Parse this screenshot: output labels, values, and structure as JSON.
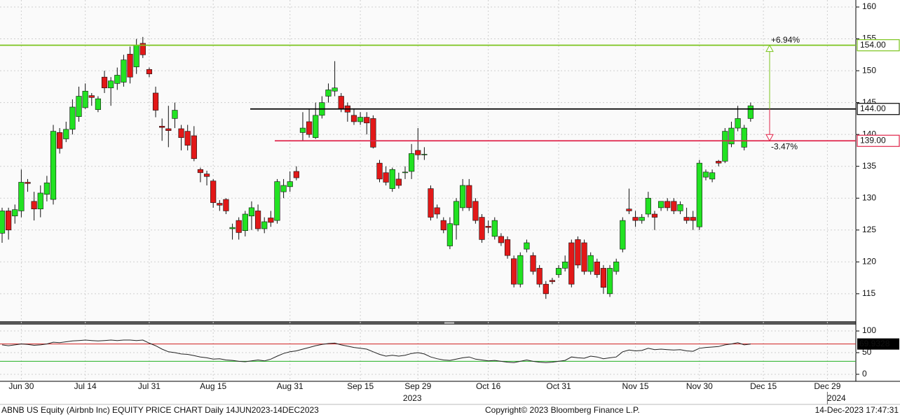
{
  "chart_data": [
    {
      "type": "candlestick",
      "categories": [
        null,
        null,
        null,
        "Jun 30",
        null,
        null,
        null,
        null,
        null,
        null,
        null,
        null,
        null,
        "Jul 14",
        null,
        null,
        null,
        null,
        null,
        null,
        null,
        null,
        null,
        "Jul 31",
        null,
        null,
        null,
        null,
        null,
        null,
        null,
        null,
        null,
        "Aug 15",
        null,
        null,
        null,
        null,
        null,
        null,
        null,
        null,
        null,
        null,
        null,
        "Aug 31",
        null,
        null,
        null,
        null,
        null,
        null,
        null,
        null,
        null,
        null,
        "Sep 15",
        null,
        null,
        null,
        null,
        null,
        null,
        null,
        null,
        "Sep 29",
        null,
        null,
        null,
        null,
        null,
        null,
        null,
        null,
        null,
        null,
        "Oct 16",
        null,
        null,
        null,
        null,
        null,
        null,
        null,
        null,
        null,
        null,
        "Oct 31",
        null,
        null,
        null,
        null,
        null,
        null,
        null,
        null,
        null,
        null,
        null,
        "Nov 15",
        null,
        null,
        null,
        null,
        null,
        null,
        null,
        null,
        null,
        "Nov 30",
        null,
        null,
        null,
        null,
        null,
        null,
        null,
        null,
        null,
        "Dec 15",
        null,
        null,
        null,
        null,
        null,
        null,
        null,
        null,
        null,
        "Dec 29",
        null,
        null,
        null,
        null
      ],
      "years": [
        "2023",
        "2024"
      ],
      "open": [
        124.5,
        128,
        127.2,
        128,
        132.5,
        129.5,
        128.3,
        130.6,
        129.8,
        140.3,
        139.3,
        140.8,
        142.8,
        144.2,
        146.1,
        143.9,
        149,
        147.3,
        148,
        148.2,
        152.6,
        150.6,
        154.3,
        150.2,
        146.5,
        141.3,
        140.9,
        142.5,
        140.9,
        140.5,
        139.8,
        134.5,
        133.8,
        132.7,
        129.2,
        129.8,
        125.2,
        126.5,
        124.9,
        127.2,
        128,
        125.2,
        126.9,
        126.5,
        131,
        131.8,
        134.2,
        140.3,
        142,
        139.5,
        143,
        146,
        146.8,
        146,
        144.5,
        143,
        142,
        142.7,
        142.5,
        135.5,
        134,
        131.5,
        133,
        134,
        134.2,
        137.5,
        136.8,
        131.5,
        128.5,
        126.5,
        122.5,
        125.8,
        128.5,
        132,
        129.5,
        127,
        125.6,
        124,
        124,
        123.5,
        120.5,
        116.5,
        122,
        121,
        119,
        116.5,
        117.1,
        118,
        119,
        123,
        123.5,
        123,
        118.5,
        120,
        119,
        115,
        118.5,
        122,
        128.3,
        127,
        126.5,
        127.5,
        127.5,
        128.5,
        129.5,
        129.5,
        128,
        127,
        127,
        125.5,
        133.3,
        133,
        135.8,
        135.8,
        138.5,
        141,
        138,
        142.5,
        null,
        null,
        null,
        null,
        null,
        null,
        null,
        null,
        null,
        null,
        null,
        null,
        null,
        null,
        null,
        null
      ],
      "high": [
        128.5,
        128.5,
        129,
        134.5,
        133,
        131,
        132,
        133.5,
        141.5,
        141,
        142,
        145.5,
        147.5,
        148,
        146.5,
        146,
        150,
        149,
        150.5,
        152.5,
        153.8,
        155,
        155.3,
        150.5,
        147.5,
        142.5,
        144.5,
        145,
        141.5,
        141.5,
        141.3,
        134.8,
        134.3,
        133,
        129.7,
        130,
        126,
        127,
        128,
        129.5,
        129,
        127,
        128,
        133,
        133,
        134.2,
        135,
        143.5,
        144,
        145,
        146,
        148,
        151.5,
        146.5,
        145,
        144,
        143.5,
        143.5,
        143,
        136,
        135,
        134.8,
        134,
        135,
        138.5,
        141,
        138,
        132,
        129,
        127,
        127,
        130,
        133,
        133,
        130,
        127.5,
        126.5,
        127,
        124.5,
        124,
        121,
        121.5,
        123.5,
        121.5,
        119.5,
        117,
        117.5,
        119.5,
        121,
        123.5,
        124,
        123.5,
        121.5,
        120.5,
        119.5,
        119.5,
        120.5,
        127,
        131.5,
        128,
        127.5,
        131,
        128,
        129.5,
        130,
        130,
        129.5,
        128.5,
        128,
        136,
        134.5,
        134.5,
        136,
        141,
        142,
        144.5,
        141.5,
        145,
        null,
        null,
        null,
        null,
        null,
        null,
        null,
        null,
        null,
        null,
        null,
        null,
        null,
        null,
        null,
        null
      ],
      "low": [
        123,
        123.5,
        126,
        127,
        131,
        126.5,
        127,
        129.5,
        129,
        137,
        138.8,
        140,
        142,
        144,
        144.5,
        143.5,
        146.5,
        144.5,
        147,
        147.5,
        148,
        149.5,
        152,
        149,
        142.7,
        139,
        138,
        141,
        137.5,
        137.5,
        135.8,
        132.5,
        132,
        128.5,
        128,
        127.5,
        123.5,
        123.5,
        124,
        125,
        124.8,
        124.5,
        125.5,
        126,
        130,
        131,
        132.8,
        139,
        139.5,
        139.3,
        142.5,
        145,
        146,
        143.5,
        142,
        141.5,
        141.5,
        140,
        137.8,
        132.5,
        132,
        131,
        131.5,
        133,
        133,
        136,
        136,
        126.5,
        126.8,
        124.5,
        122,
        123.5,
        128,
        128,
        126,
        123,
        124.5,
        123.5,
        122.5,
        120.5,
        116,
        116,
        121.5,
        118,
        116,
        114.2,
        116.5,
        117.5,
        118.5,
        116,
        119,
        118,
        118,
        117.5,
        115,
        114.5,
        118,
        121.5,
        127.5,
        125.5,
        126,
        127,
        125,
        128,
        128,
        127.5,
        127.5,
        126,
        125,
        125,
        132.8,
        132.5,
        135,
        135.5,
        138,
        140.5,
        137.5,
        142,
        null,
        null,
        null,
        null,
        null,
        null,
        null,
        null,
        null,
        null,
        null,
        null,
        null,
        null,
        null,
        null
      ],
      "close": [
        128,
        125,
        128.2,
        132.5,
        132.3,
        128.3,
        130.8,
        132.4,
        140.5,
        137.8,
        140.8,
        144.3,
        146,
        146.8,
        145.8,
        145.6,
        147.3,
        148.4,
        149.3,
        151.7,
        149,
        154,
        152.5,
        149.5,
        143.8,
        141.1,
        140.6,
        143.8,
        139.5,
        138.3,
        136.2,
        134,
        133.4,
        129.3,
        128.9,
        128,
        125.4,
        124.6,
        127.5,
        128.5,
        125.2,
        126.3,
        126.2,
        132.6,
        132,
        132.6,
        133.2,
        141,
        140,
        143,
        145,
        147,
        147.3,
        144,
        143.5,
        142,
        142.7,
        141.8,
        138,
        133,
        132.5,
        134.5,
        132,
        134.1,
        137,
        136.8,
        136.9,
        127,
        127.5,
        125,
        126,
        129.5,
        132,
        128.5,
        126.5,
        123.5,
        125.4,
        126.5,
        123,
        121,
        116.5,
        121,
        123,
        118.5,
        116.5,
        115,
        116.9,
        119,
        120,
        116.5,
        119.5,
        118.5,
        121,
        118,
        116,
        119,
        120,
        126.5,
        128,
        126.5,
        127,
        130,
        127,
        129.5,
        128.5,
        128,
        129,
        126.5,
        126.5,
        135.5,
        134.1,
        134,
        135.5,
        140.5,
        141,
        142.5,
        141,
        144.5,
        null,
        null,
        null,
        null,
        null,
        null,
        null,
        null,
        null,
        null,
        null,
        null,
        null,
        null,
        null,
        null
      ],
      "up_color": "#22e222",
      "down_color": "#e21818",
      "ylim": [
        110.7,
        161.1
      ],
      "yticks": [
        115,
        120,
        125,
        130,
        135,
        140,
        145,
        150,
        155,
        160
      ],
      "grid": true,
      "levels": [
        {
          "value": 154,
          "label": "154.00",
          "color": "#7cc41e"
        },
        {
          "value": 144,
          "label": "144.00",
          "color": "#000000"
        },
        {
          "value": 139,
          "label": "139.00",
          "color": "#e0254a"
        }
      ],
      "annotations": [
        {
          "text": "+6.94%",
          "color": "#7cc41e"
        },
        {
          "text": "-3.47%",
          "color": "#e0254a"
        }
      ],
      "footer": [
        "ABNB US Equity (Airbnb Inc) EQUITY PRICE CHART  Daily 14JUN2023-14DEC2023",
        "Copyright© 2023 Bloomberg Finance L.P.",
        "14-Dec-2023 17:47:31"
      ]
    },
    {
      "type": "line",
      "color": "#222222",
      "values": [
        68,
        66,
        68,
        70,
        69,
        67,
        68,
        70,
        74,
        73,
        75,
        77,
        78,
        79,
        78,
        77,
        78,
        79,
        78,
        79,
        79,
        78,
        79,
        72,
        66,
        58,
        52,
        50,
        47,
        46,
        43,
        40,
        38,
        35,
        36,
        33,
        32,
        30,
        29,
        31,
        33,
        31,
        35,
        42,
        48,
        52,
        54,
        58,
        62,
        66,
        69,
        71,
        72,
        68,
        65,
        62,
        60,
        58,
        52,
        46,
        42,
        44,
        42,
        44,
        48,
        50,
        47,
        40,
        36,
        33,
        32,
        35,
        38,
        40,
        35,
        33,
        31,
        32,
        30,
        28,
        27,
        30,
        33,
        30,
        28,
        27,
        28,
        30,
        32,
        40,
        38,
        37,
        42,
        40,
        36,
        38,
        40,
        52,
        56,
        54,
        55,
        60,
        57,
        58,
        57,
        56,
        57,
        54,
        53,
        60,
        62,
        63,
        64,
        68,
        70,
        73,
        68,
        69.9328,
        null,
        null,
        null,
        null,
        null,
        null,
        null,
        null,
        null,
        null,
        null,
        null,
        null,
        null,
        null,
        null
      ],
      "ylim": [
        -13,
        113
      ],
      "yticks": [
        0,
        50,
        100
      ],
      "grid": true,
      "levels": [
        {
          "value": 70,
          "color": "#d02020"
        },
        {
          "value": 30,
          "color": "#22b022"
        }
      ]
    }
  ]
}
